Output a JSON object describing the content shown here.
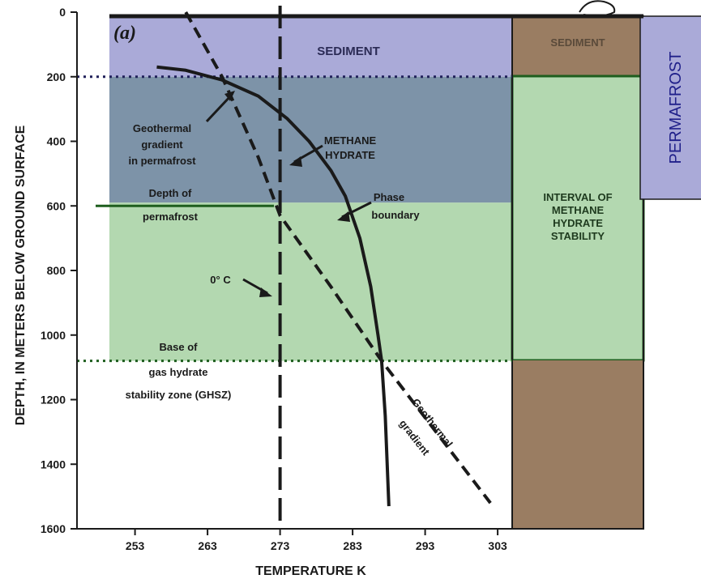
{
  "chart_data": {
    "type": "line",
    "panel_label": "(a)",
    "xlabel": "TEMPERATURE K",
    "ylabel": "DEPTH, IN METERS BELOW GROUND SURFACE",
    "xlim": [
      245,
      305
    ],
    "ylim": [
      1600,
      0
    ],
    "x_ticks": [
      253,
      263,
      273,
      283,
      293,
      303
    ],
    "y_ticks": [
      0,
      200,
      400,
      600,
      800,
      1000,
      1200,
      1400,
      1600
    ],
    "grid": false,
    "series": [
      {
        "name": "METHANE HYDRATE Phase boundary",
        "style": "solid",
        "color": "#1a1a1a",
        "points": [
          [
            256,
            170
          ],
          [
            260,
            180
          ],
          [
            265,
            210
          ],
          [
            270,
            260
          ],
          [
            274,
            330
          ],
          [
            277,
            400
          ],
          [
            280,
            490
          ],
          [
            282,
            570
          ],
          [
            284,
            700
          ],
          [
            285.5,
            850
          ],
          [
            286.5,
            1000
          ],
          [
            287,
            1080
          ],
          [
            287.5,
            1250
          ],
          [
            288,
            1530
          ]
        ]
      },
      {
        "name": "Geothermal gradient",
        "style": "dashed",
        "color": "#1a1a1a",
        "points": [
          [
            260,
            0
          ],
          [
            265,
            200
          ],
          [
            270,
            450
          ],
          [
            273,
            630
          ],
          [
            280,
            850
          ],
          [
            287,
            1080
          ],
          [
            302,
            1520
          ]
        ]
      },
      {
        "name": "0° C",
        "style": "dashed-vertical",
        "color": "#1a1a1a",
        "points": [
          [
            273,
            -20
          ],
          [
            273,
            1600
          ]
        ]
      }
    ],
    "horizontal_lines": [
      {
        "name": "base-of-sediment",
        "depth": 200,
        "style": "dotted"
      },
      {
        "name": "depth-of-permafrost",
        "depth": 600,
        "style": "solid"
      },
      {
        "name": "base-of-ghsz",
        "depth": 1080,
        "style": "dotted"
      }
    ],
    "shaded_bands": [
      {
        "name": "sediment",
        "from": 0,
        "to": 200,
        "color": "#aaaad8"
      },
      {
        "name": "permafrost-overlap",
        "from": 200,
        "to": 590,
        "color": "#7d93a8"
      },
      {
        "name": "hydrate-stability",
        "from": 590,
        "to": 1080,
        "color": "#b3d8b0"
      }
    ],
    "annotations": {
      "sediment": "SEDIMENT",
      "geothermal_permafrost": [
        "Geothermal",
        "gradient",
        "in permafrost"
      ],
      "methane_hydrate": [
        "METHANE",
        "HYDRATE"
      ],
      "phase_boundary": [
        "Phase",
        "boundary"
      ],
      "depth_of_permafrost": [
        "Depth of",
        "permafrost"
      ],
      "zero_c": "0° C",
      "base_ghsz": [
        "Base of",
        "gas hydrate",
        "stability zone (GHSZ)"
      ],
      "geothermal_gradient": [
        "Geothermal",
        "gradient"
      ]
    }
  },
  "column": {
    "sediment_label": "SEDIMENT",
    "stability_label": [
      "INTERVAL OF",
      "METHANE",
      "HYDRATE",
      "STABILITY"
    ],
    "colors": {
      "sediment": "#9a7d62",
      "stability": "#b3d8b0",
      "rock": "#9a7d62",
      "border": "#1e5e1e"
    }
  },
  "side_label": {
    "text": "PERMAFROST",
    "color": "#aaaad8"
  }
}
